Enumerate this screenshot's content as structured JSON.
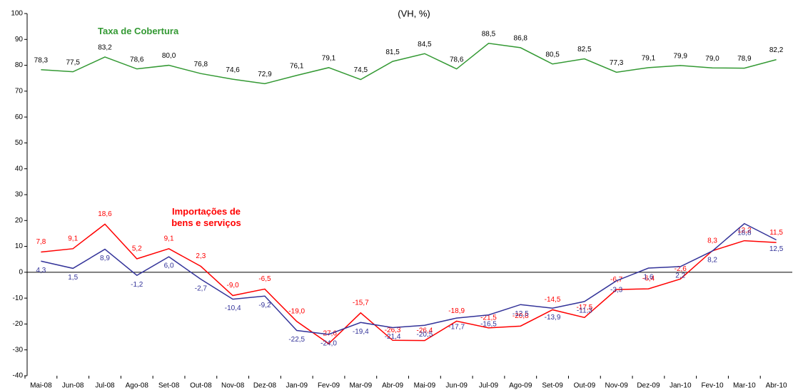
{
  "chart_data": {
    "type": "line",
    "subtitle": "(VH, %)",
    "categories": [
      "Mai-08",
      "Jun-08",
      "Jul-08",
      "Ago-08",
      "Set-08",
      "Out-08",
      "Nov-08",
      "Dez-08",
      "Jan-09",
      "Fev-09",
      "Mar-09",
      "Abr-09",
      "Mai-09",
      "Jun-09",
      "Jul-09",
      "Ago-09",
      "Set-09",
      "Out-09",
      "Nov-09",
      "Dez-09",
      "Jan-10",
      "Fev-10",
      "Mar-10",
      "Abr-10"
    ],
    "ylim": [
      -40,
      100
    ],
    "yticks": [
      -40,
      -30,
      -20,
      -10,
      0,
      10,
      20,
      30,
      40,
      50,
      60,
      70,
      80,
      90,
      100
    ],
    "grid": false,
    "series": [
      {
        "name": "Taxa de Cobertura",
        "color": "#339933",
        "values": [
          78.3,
          77.5,
          83.2,
          78.6,
          80.0,
          76.8,
          74.6,
          72.9,
          76.1,
          79.1,
          74.5,
          81.5,
          84.5,
          78.6,
          88.5,
          86.8,
          80.5,
          82.5,
          77.3,
          79.1,
          79.9,
          79.0,
          78.9,
          82.2
        ],
        "value_labels": [
          "78,3",
          "77,5",
          "83,2",
          "78,6",
          "80,0",
          "76,8",
          "74,6",
          "72,9",
          "76,1",
          "79,1",
          "74,5",
          "81,5",
          "84,5",
          "78,6",
          "88,5",
          "86,8",
          "80,5",
          "82,5",
          "77,3",
          "79,1",
          "79,9",
          "79,0",
          "78,9",
          "82,2"
        ]
      },
      {
        "name": "Importações de bens e serviços",
        "color": "#ff0000",
        "values": [
          7.8,
          9.1,
          18.6,
          5.2,
          9.1,
          2.3,
          -9.0,
          -6.5,
          -19.0,
          -27.6,
          -15.7,
          -26.3,
          -26.4,
          -18.9,
          -21.5,
          -20.8,
          -14.5,
          -17.5,
          -6.7,
          -6.4,
          -2.6,
          8.3,
          12.2,
          11.5
        ],
        "value_labels": [
          "7,8",
          "9,1",
          "18,6",
          "5,2",
          "9,1",
          "2,3",
          "-9,0",
          "-6,5",
          "-19,0",
          "-27,6",
          "-15,7",
          "-26,3",
          "-26,4",
          "-18,9",
          "-21,5",
          "-20,8",
          "-14,5",
          "-17,5",
          "-6,7",
          "-6,4",
          "-2,6",
          "8,3",
          "12,2",
          "11,5"
        ]
      },
      {
        "color": "#333399",
        "values": [
          4.3,
          1.5,
          8.9,
          -1.2,
          6.0,
          -2.7,
          -10.4,
          -9.2,
          -22.5,
          -24.0,
          -19.4,
          -21.4,
          -20.5,
          -17.7,
          -16.5,
          -12.5,
          -13.9,
          -11.3,
          -3.3,
          1.6,
          2.2,
          8.2,
          18.8,
          12.5
        ],
        "value_labels": [
          "4,3",
          "1,5",
          "8,9",
          "-1,2",
          "6,0",
          "-2,7",
          "-10,4",
          "-9,2",
          "-22,5",
          "-24,0",
          "-19,4",
          "-21,4",
          "-20,5",
          "-17,7",
          "-16,5",
          "-12,5",
          "-13,9",
          "-11,3",
          "-3,3",
          "1,6",
          "2,2",
          "8,2",
          "18,8",
          "12,5"
        ]
      }
    ]
  }
}
